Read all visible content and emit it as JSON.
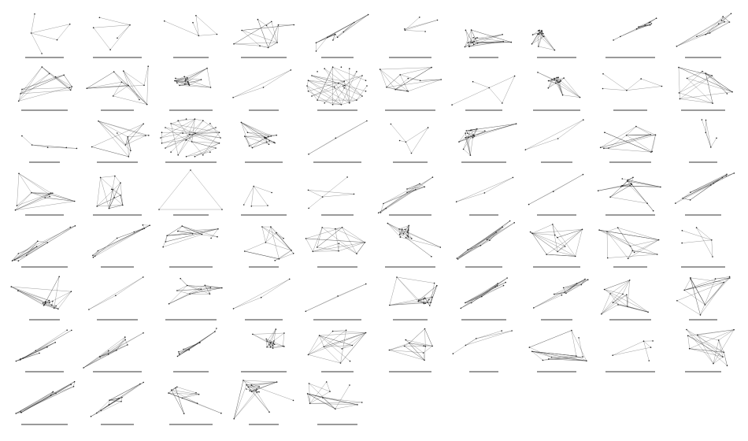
{
  "figure": {
    "rows": 8,
    "columns": 10,
    "panel_count": 75,
    "edge_color": "#3a3a3a",
    "node_color": "#222222",
    "background": "#ffffff",
    "captions_legible": false,
    "panels": [
      {
        "index": 1,
        "style": "sparse"
      },
      {
        "index": 2,
        "style": "sparse"
      },
      {
        "index": 3,
        "style": "sparse"
      },
      {
        "index": 4,
        "style": "mesh"
      },
      {
        "index": 5,
        "style": "diagonal"
      },
      {
        "index": 6,
        "style": "sparse"
      },
      {
        "index": 7,
        "style": "cluster"
      },
      {
        "index": 8,
        "style": "cluster"
      },
      {
        "index": 9,
        "style": "diagonal"
      },
      {
        "index": 10,
        "style": "diagonal"
      },
      {
        "index": 11,
        "style": "mesh"
      },
      {
        "index": 12,
        "style": "mesh"
      },
      {
        "index": 13,
        "style": "cluster"
      },
      {
        "index": 14,
        "style": "line"
      },
      {
        "index": 15,
        "style": "ring"
      },
      {
        "index": 16,
        "style": "mesh"
      },
      {
        "index": 17,
        "style": "sparse"
      },
      {
        "index": 18,
        "style": "cluster"
      },
      {
        "index": 19,
        "style": "sparse"
      },
      {
        "index": 20,
        "style": "mesh"
      },
      {
        "index": 21,
        "style": "sparse"
      },
      {
        "index": 22,
        "style": "mesh"
      },
      {
        "index": 23,
        "style": "ring"
      },
      {
        "index": 24,
        "style": "cluster"
      },
      {
        "index": 25,
        "style": "line"
      },
      {
        "index": 26,
        "style": "sparse"
      },
      {
        "index": 27,
        "style": "cluster"
      },
      {
        "index": 28,
        "style": "line"
      },
      {
        "index": 29,
        "style": "mesh"
      },
      {
        "index": 30,
        "style": "sparse"
      },
      {
        "index": 31,
        "style": "mesh"
      },
      {
        "index": 32,
        "style": "mesh"
      },
      {
        "index": 33,
        "style": "triangle"
      },
      {
        "index": 34,
        "style": "sparse"
      },
      {
        "index": 35,
        "style": "sparse"
      },
      {
        "index": 36,
        "style": "diagonal"
      },
      {
        "index": 37,
        "style": "line"
      },
      {
        "index": 38,
        "style": "line"
      },
      {
        "index": 39,
        "style": "cluster"
      },
      {
        "index": 40,
        "style": "diagonal"
      },
      {
        "index": 41,
        "style": "diagonal"
      },
      {
        "index": 42,
        "style": "diagonal"
      },
      {
        "index": 43,
        "style": "mesh"
      },
      {
        "index": 44,
        "style": "mesh"
      },
      {
        "index": 45,
        "style": "mesh"
      },
      {
        "index": 46,
        "style": "cluster"
      },
      {
        "index": 47,
        "style": "diagonal"
      },
      {
        "index": 48,
        "style": "mesh"
      },
      {
        "index": 49,
        "style": "mesh"
      },
      {
        "index": 50,
        "style": "sparse"
      },
      {
        "index": 51,
        "style": "cluster"
      },
      {
        "index": 52,
        "style": "line"
      },
      {
        "index": 53,
        "style": "mesh"
      },
      {
        "index": 54,
        "style": "line"
      },
      {
        "index": 55,
        "style": "line"
      },
      {
        "index": 56,
        "style": "cluster"
      },
      {
        "index": 57,
        "style": "diagonal"
      },
      {
        "index": 58,
        "style": "diagonal"
      },
      {
        "index": 59,
        "style": "mesh"
      },
      {
        "index": 60,
        "style": "mesh"
      },
      {
        "index": 61,
        "style": "diagonal"
      },
      {
        "index": 62,
        "style": "diagonal"
      },
      {
        "index": 63,
        "style": "diagonal"
      },
      {
        "index": 64,
        "style": "cluster"
      },
      {
        "index": 65,
        "style": "mesh"
      },
      {
        "index": 66,
        "style": "mesh"
      },
      {
        "index": 67,
        "style": "sparse"
      },
      {
        "index": 68,
        "style": "mesh"
      },
      {
        "index": 69,
        "style": "sparse"
      },
      {
        "index": 70,
        "style": "mesh"
      },
      {
        "index": 71,
        "style": "diagonal"
      },
      {
        "index": 72,
        "style": "diagonal"
      },
      {
        "index": 73,
        "style": "mesh"
      },
      {
        "index": 74,
        "style": "cluster"
      },
      {
        "index": 75,
        "style": "mesh"
      }
    ]
  }
}
